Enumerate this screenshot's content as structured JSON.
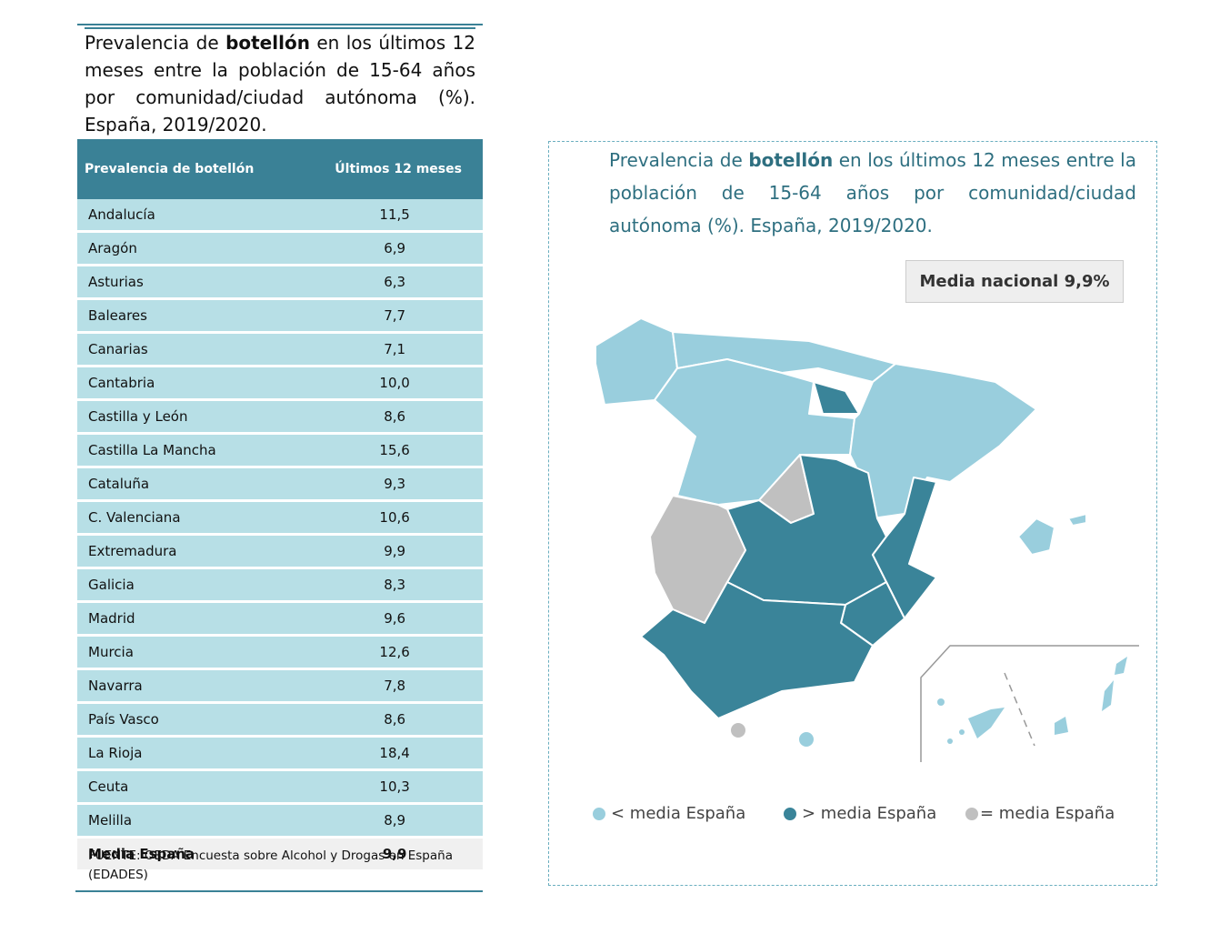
{
  "left_title": {
    "before": "Prevalencia de ",
    "bold": "botellón",
    "after": " en los últimos 12 meses entre la población de 15-64 años por comunidad/ciudad autónoma (%). España, 2019/2020."
  },
  "table": {
    "header": [
      "Prevalencia de botellón",
      "Últimos 12 meses"
    ],
    "rows": [
      [
        "Andalucía",
        "11,5"
      ],
      [
        "Aragón",
        "6,9"
      ],
      [
        "Asturias",
        "6,3"
      ],
      [
        "Baleares",
        "7,7"
      ],
      [
        "Canarias",
        "7,1"
      ],
      [
        "Cantabria",
        "10,0"
      ],
      [
        "Castilla y León",
        "8,6"
      ],
      [
        "Castilla La Mancha",
        "15,6"
      ],
      [
        "Cataluña",
        "9,3"
      ],
      [
        "C. Valenciana",
        "10,6"
      ],
      [
        "Extremadura",
        "9,9"
      ],
      [
        "Galicia",
        "8,3"
      ],
      [
        "Madrid",
        "9,6"
      ],
      [
        "Murcia",
        "12,6"
      ],
      [
        "Navarra",
        "7,8"
      ],
      [
        "País Vasco",
        "8,6"
      ],
      [
        "La Rioja",
        "18,4"
      ],
      [
        "Ceuta",
        "10,3"
      ],
      [
        "Melilla",
        "8,9"
      ]
    ],
    "total": [
      "Media España",
      "9,9"
    ]
  },
  "source": "FUENTE: OEDA Encuesta sobre Alcohol y Drogas en España (EDADES)",
  "map": {
    "title": {
      "before": "Prevalencia de ",
      "bold": "botellón",
      "after": " en los últimos 12 meses entre la población de 15-64 años por comunidad/ciudad autónoma (%). España, 2019/2020."
    },
    "badge": "Media nacional 9,9%",
    "legend": [
      "< media España",
      "> media España",
      "= media España"
    ]
  }
}
